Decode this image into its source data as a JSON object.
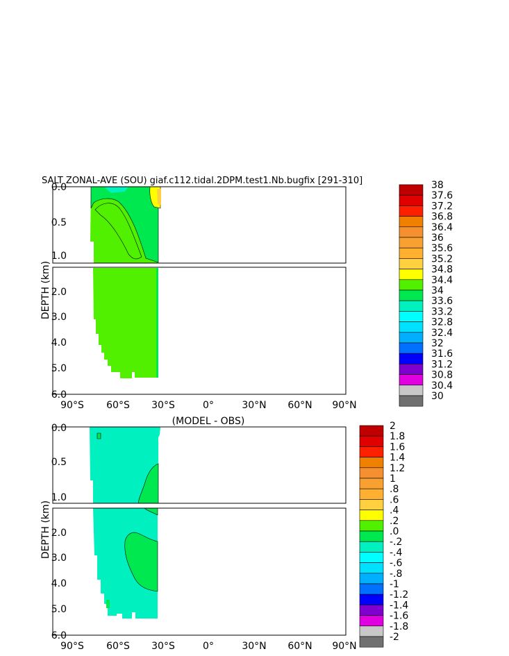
{
  "chart_data": [
    {
      "type": "heatmap",
      "title": "SALT ZONAL-AVE (SOU) giaf.c112.tidal.2DPM.test1.Nb.bugfix [291-310]",
      "ylabel": "DEPTH (km)",
      "upper_yticks": [
        "0.0",
        "0.5",
        "1.0"
      ],
      "lower_yticks": [
        "2.0",
        "3.0",
        "4.0",
        "5.0",
        "6.0"
      ],
      "xticks": [
        "90°S",
        "60°S",
        "30°S",
        "0°",
        "30°N",
        "60°N",
        "90°N"
      ],
      "colorbar": {
        "labels": [
          "38",
          "37.6",
          "37.2",
          "36.8",
          "36.4",
          "36",
          "35.6",
          "35.2",
          "34.8",
          "34.4",
          "34",
          "33.6",
          "33.2",
          "32.8",
          "32.4",
          "32",
          "31.6",
          "31.2",
          "30.8",
          "30.4",
          "30"
        ],
        "colors": [
          "#c00000",
          "#e00000",
          "#ff2000",
          "#f08000",
          "#f49030",
          "#f8a030",
          "#ffb030",
          "#ffd040",
          "#ffff00",
          "#50f000",
          "#00e850",
          "#00f0c0",
          "#00ffff",
          "#00e0ff",
          "#00b0ff",
          "#0070ff",
          "#0000ff",
          "#8000d0",
          "#e000e0",
          "#c8c8c8",
          "#707070"
        ]
      }
    },
    {
      "type": "heatmap",
      "title": "(MODEL - OBS)",
      "ylabel": "DEPTH (km)",
      "upper_yticks": [
        "0.0",
        "0.5",
        "1.0"
      ],
      "lower_yticks": [
        "2.0",
        "3.0",
        "4.0",
        "5.0",
        "6.0"
      ],
      "xticks": [
        "90°S",
        "60°S",
        "30°S",
        "0°",
        "30°N",
        "60°N",
        "90°N"
      ],
      "colorbar": {
        "labels": [
          "2",
          "1.8",
          "1.6",
          "1.4",
          "1.2",
          "1",
          ".8",
          ".6",
          ".4",
          ".2",
          ".0",
          "-.2",
          "-.4",
          "-.6",
          "-.8",
          "-1",
          "-1.2",
          "-1.4",
          "-1.6",
          "-1.8",
          "-2"
        ],
        "colors": [
          "#c00000",
          "#e00000",
          "#ff2000",
          "#f08000",
          "#f49030",
          "#f8a030",
          "#ffb030",
          "#ffd040",
          "#ffff00",
          "#50f000",
          "#00e850",
          "#00f0c0",
          "#00ffff",
          "#00e0ff",
          "#00b0ff",
          "#0070ff",
          "#0000ff",
          "#8000d0",
          "#e000e0",
          "#c8c8c8",
          "#707070"
        ]
      }
    }
  ]
}
